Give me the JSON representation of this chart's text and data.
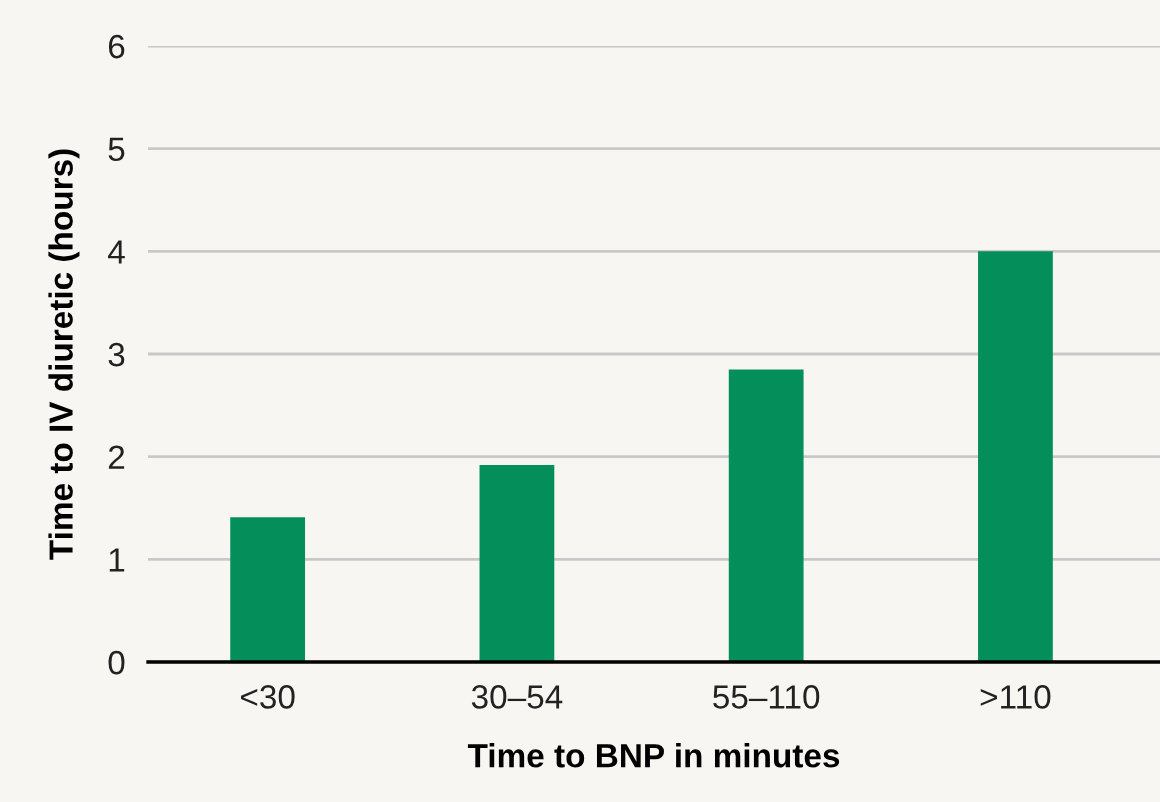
{
  "chart_data": {
    "type": "bar",
    "xlabel": "Time to BNP in minutes",
    "ylabel": "Time to IV diuretic (hours)",
    "categories": [
      "<30",
      "30–54",
      "55–110",
      ">110"
    ],
    "values": [
      1.41,
      1.92,
      2.85,
      4.0
    ],
    "color": "#048f5a",
    "ylim": [
      0,
      6
    ],
    "yticks": [
      0,
      1,
      2,
      3,
      4,
      5,
      6
    ],
    "grid": "y"
  }
}
